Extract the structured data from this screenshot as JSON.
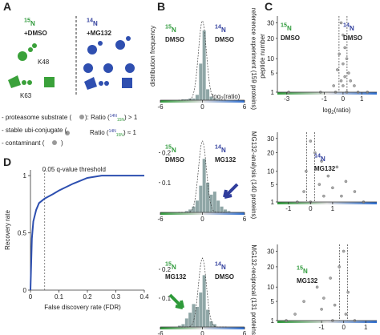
{
  "panel_a": {
    "letter": "A",
    "left": {
      "sup": "15",
      "base": "N",
      "line2": "+DMSO"
    },
    "right": {
      "sup": "14",
      "base": "N",
      "line2": "+MG132"
    },
    "k48": "K48",
    "k63": "K63",
    "legend": [
      {
        "text": "- proteasome substrate (",
        "ratio": "): Ratio (",
        "top": "14N",
        "bottom": "15N",
        "end": ") > 1"
      },
      {
        "text": "- stable ubi-conjugate (",
        "ratio": "Ratio (",
        "top": "14N",
        "bottom": "15N",
        "end": ") ≈ 1"
      },
      {
        "text": "- contaminant (",
        "end": ")"
      }
    ]
  },
  "panel_b": {
    "letter": "B",
    "y_label": "distribution frequency",
    "x_label": {
      "a": "log",
      "sub": "2",
      "b": "(ratio)"
    },
    "plots": [
      {
        "side": "reference experiment (159 proteins)",
        "left": {
          "sup": "15",
          "base": "N",
          "line2": "DMSO",
          "color": "#2e9a3a"
        },
        "right": {
          "sup": "14",
          "base": "N",
          "line2": "DMSO",
          "color": "#2f3d9c"
        },
        "bins": [
          -6,
          -5.5,
          -5,
          -4.5,
          -4,
          -3.5,
          -3,
          -2.5,
          -2,
          -1.5,
          -1,
          -0.5,
          0,
          0.5,
          1,
          1.5,
          2,
          2.5,
          3,
          3.5,
          4,
          4.5,
          5,
          5.5,
          6
        ],
        "counts": [
          0,
          0,
          0,
          0,
          0,
          0,
          0.005,
          0.005,
          0.01,
          0.01,
          0.03,
          0.2,
          0.38,
          0.06,
          0.02,
          0.01,
          0.005,
          0,
          0,
          0,
          0,
          0,
          0,
          0
        ],
        "xlim": [
          -6,
          6
        ],
        "xticks": [
          -6,
          0,
          6
        ],
        "ylim": [
          0,
          0.45
        ]
      },
      {
        "side": "MG132-analysis (140 proteins)",
        "left": {
          "sup": "15",
          "base": "N",
          "line2": "DMSO",
          "color": "#2e9a3a"
        },
        "right": {
          "sup": "14",
          "base": "N",
          "line2": "MG132",
          "color": "#2f3d9c"
        },
        "bins": [
          -6,
          -5.5,
          -5,
          -4.5,
          -4,
          -3.5,
          -3,
          -2.5,
          -2,
          -1.5,
          -1,
          -0.5,
          0,
          0.5,
          1,
          1.5,
          2,
          2.5,
          3,
          3.5,
          4,
          4.5,
          5,
          5.5,
          6
        ],
        "counts": [
          0,
          0,
          0,
          0,
          0,
          0,
          0,
          0.005,
          0.01,
          0.02,
          0.04,
          0.09,
          0.18,
          0.1,
          0.06,
          0.07,
          0.04,
          0.02,
          0.01,
          0.005,
          0,
          0,
          0,
          0
        ],
        "xlim": [
          -6,
          6
        ],
        "xticks": [
          -6,
          0,
          6
        ],
        "ylim": [
          0,
          0.25
        ],
        "yticks": [
          0.1,
          0.2
        ]
      },
      {
        "side": "MG132-reciprocal (131 proteins)",
        "left": {
          "sup": "15",
          "base": "N",
          "line2": "MG132",
          "color": "#2e9a3a"
        },
        "right": {
          "sup": "14",
          "base": "N",
          "line2": "DMSO",
          "color": "#2f3d9c"
        },
        "bins": [
          -6,
          -5.5,
          -5,
          -4.5,
          -4,
          -3.5,
          -3,
          -2.5,
          -2,
          -1.5,
          -1,
          -0.5,
          0,
          0.5,
          1,
          1.5,
          2,
          2.5,
          3,
          3.5,
          4,
          4.5,
          5,
          5.5,
          6
        ],
        "counts": [
          0,
          0,
          0,
          0,
          0,
          0.005,
          0.01,
          0.03,
          0.05,
          0.08,
          0.07,
          0.12,
          0.18,
          0.06,
          0.02,
          0.01,
          0,
          0,
          0,
          0,
          0,
          0,
          0,
          0
        ],
        "xlim": [
          -6,
          6
        ],
        "xticks": [
          -6,
          0,
          6
        ],
        "ylim": [
          0,
          0.25
        ],
        "yticks": [
          0.1,
          0.2
        ]
      }
    ]
  },
  "panel_c": {
    "letter": "C",
    "y_label": "peptide number",
    "x_label": {
      "a": "log",
      "sub": "2",
      "b": "(ratio)"
    },
    "yscale": "sqrt",
    "plots": [
      {
        "labels": [
          {
            "sup": "15",
            "base": "N",
            "line2": "DMSO",
            "color": "#2e9a3a"
          },
          {
            "sup": "14",
            "base": "N",
            "line2": "DMSO",
            "color": "#2f3d9c"
          }
        ],
        "x": [
          -0.1,
          0,
          0.1,
          -0.2,
          0.2,
          0,
          -0.3,
          0.3,
          0.1,
          -0.1,
          0.4,
          -0.5,
          0.6,
          0,
          0.2,
          -0.4,
          0.8,
          -1.2,
          1.3,
          -2.9
        ],
        "y": [
          30,
          22,
          15,
          12,
          10,
          8,
          6,
          5,
          4,
          3,
          3,
          2,
          2,
          2,
          1,
          1,
          1,
          1,
          1,
          1
        ],
        "xlim": [
          -3.5,
          1.8
        ],
        "xticks": [
          -3,
          -1,
          0,
          1
        ],
        "ylim": [
          1,
          35
        ],
        "yticks": [
          1,
          5,
          10,
          20,
          30
        ]
      },
      {
        "labels": [
          {
            "sup": "14",
            "base": "N",
            "line2": "MG132",
            "color": "#2f3d9c"
          }
        ],
        "x": [
          0,
          0.2,
          0.5,
          1.2,
          -0.2,
          0.8,
          1.6,
          0.4,
          1,
          2,
          -0.3,
          0.6,
          1.4,
          0,
          2.4,
          -0.6
        ],
        "y": [
          28,
          20,
          15,
          12,
          10,
          8,
          6,
          5,
          4,
          3,
          3,
          2,
          2,
          1,
          1,
          1
        ],
        "xlim": [
          -1.5,
          3
        ],
        "xticks": [
          -1,
          0,
          1
        ],
        "ylim": [
          1,
          35
        ],
        "yticks": [
          1,
          5,
          10,
          20,
          30
        ]
      },
      {
        "labels": [
          {
            "sup": "15",
            "base": "N",
            "line2": "MG132",
            "color": "#2e9a3a"
          }
        ],
        "x": [
          0,
          -0.2,
          -0.6,
          -1.2,
          0.2,
          -0.9,
          -1.8,
          -0.4,
          -1,
          -2.2,
          0.1,
          -0.5,
          -2.6,
          0.5
        ],
        "y": [
          30,
          20,
          14,
          10,
          8,
          6,
          5,
          4,
          3,
          2,
          2,
          1,
          1,
          1
        ],
        "xlim": [
          -3,
          1.5
        ],
        "xticks": [
          -1,
          0,
          1
        ],
        "ylim": [
          1,
          35
        ],
        "yticks": [
          1,
          5,
          10,
          20,
          30
        ]
      }
    ]
  },
  "panel_d": {
    "letter": "D",
    "x_label": "False discovery rate (FDR)",
    "y_label": "Recovery rate",
    "threshold": 0.05,
    "threshold_label": "0.05  q-value threshold",
    "color": "#2d4fb0",
    "x": [
      0,
      0.005,
      0.01,
      0.02,
      0.03,
      0.05,
      0.08,
      0.1,
      0.15,
      0.2,
      0.25,
      0.3,
      0.4
    ],
    "y": [
      0,
      0.45,
      0.6,
      0.7,
      0.76,
      0.8,
      0.84,
      0.87,
      0.93,
      0.98,
      1,
      1,
      1
    ],
    "xlim": [
      0,
      0.4
    ],
    "xticks": [
      0,
      0.1,
      0.2,
      0.3,
      0.4
    ],
    "ylim": [
      0,
      1.05
    ],
    "yticks": [
      0,
      0.5,
      1
    ]
  }
}
